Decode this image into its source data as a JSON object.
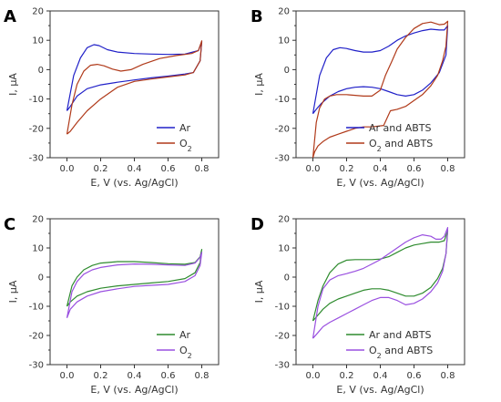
{
  "chart_data": [
    {
      "type": "line",
      "panel": "A",
      "xlabel": "E, V (vs. Ag/AgCl)",
      "ylabel": "I, µA",
      "xlim": [
        -0.1,
        0.9
      ],
      "ylim": [
        -30,
        20
      ],
      "xticks": [
        "0.0",
        "0.2",
        "0.4",
        "0.6",
        "0.8"
      ],
      "yticks": [
        "-30",
        "-20",
        "-10",
        "0",
        "10",
        "20"
      ],
      "legend": "bottom-right",
      "series": [
        {
          "name": "Ar",
          "color": "#2020c8",
          "x": [
            0,
            0.04,
            0.08,
            0.12,
            0.16,
            0.19,
            0.24,
            0.3,
            0.4,
            0.5,
            0.6,
            0.7,
            0.78,
            0.8,
            0.79,
            0.75,
            0.7,
            0.6,
            0.5,
            0.4,
            0.3,
            0.2,
            0.12,
            0.06,
            0.02,
            0
          ],
          "y": [
            -14,
            -2,
            4,
            7.5,
            8.5,
            8.2,
            6.8,
            6,
            5.5,
            5.3,
            5.2,
            5.3,
            6.5,
            9.5,
            3,
            -1,
            -1.5,
            -2.2,
            -2.8,
            -3.5,
            -4.3,
            -5.2,
            -6.5,
            -9,
            -12.5,
            -14
          ]
        },
        {
          "name": "O2",
          "color": "#b03a1a",
          "x": [
            0,
            0.03,
            0.06,
            0.1,
            0.14,
            0.18,
            0.22,
            0.27,
            0.32,
            0.38,
            0.45,
            0.55,
            0.65,
            0.74,
            0.78,
            0.8,
            0.79,
            0.75,
            0.7,
            0.6,
            0.5,
            0.4,
            0.3,
            0.2,
            0.12,
            0.06,
            0.02,
            0
          ],
          "y": [
            -22,
            -12,
            -5,
            -0.5,
            1.5,
            1.8,
            1.3,
            0.2,
            -0.5,
            0,
            1.8,
            3.8,
            4.8,
            5.5,
            6.5,
            9.8,
            3,
            -1,
            -1.8,
            -2.5,
            -3.2,
            -4,
            -6,
            -10,
            -14,
            -18,
            -21,
            -22
          ]
        }
      ]
    },
    {
      "type": "line",
      "panel": "B",
      "xlabel": "E, V (vs. Ag/AgCl)",
      "ylabel": "I, µA",
      "xlim": [
        -0.1,
        0.9
      ],
      "ylim": [
        -30,
        20
      ],
      "xticks": [
        "0.0",
        "0.2",
        "0.4",
        "0.6",
        "0.8"
      ],
      "yticks": [
        "-30",
        "-20",
        "-10",
        "0",
        "10",
        "20"
      ],
      "legend": "bottom-right",
      "series": [
        {
          "name": "Ar and ABTS",
          "color": "#2020c8",
          "x": [
            0,
            0.04,
            0.08,
            0.12,
            0.16,
            0.2,
            0.25,
            0.3,
            0.35,
            0.4,
            0.45,
            0.5,
            0.55,
            0.6,
            0.65,
            0.7,
            0.75,
            0.78,
            0.8,
            0.79,
            0.75,
            0.7,
            0.65,
            0.6,
            0.55,
            0.5,
            0.45,
            0.4,
            0.35,
            0.3,
            0.25,
            0.2,
            0.15,
            0.1,
            0.05,
            0.02,
            0
          ],
          "y": [
            -15,
            -2,
            4,
            6.8,
            7.5,
            7.2,
            6.5,
            6,
            6,
            6.5,
            8,
            10,
            11.5,
            12.5,
            13.3,
            13.8,
            13.5,
            13.5,
            15,
            5,
            -1,
            -4.5,
            -7,
            -8.5,
            -9,
            -8.5,
            -7.5,
            -6.5,
            -6,
            -5.8,
            -6,
            -6.5,
            -7.5,
            -9,
            -11.5,
            -13.5,
            -15
          ]
        },
        {
          "name": "O2 and ABTS",
          "color": "#b03a1a",
          "x": [
            0,
            0.02,
            0.04,
            0.07,
            0.1,
            0.14,
            0.2,
            0.3,
            0.35,
            0.4,
            0.43,
            0.47,
            0.5,
            0.55,
            0.6,
            0.65,
            0.7,
            0.75,
            0.78,
            0.8,
            0.79,
            0.77,
            0.74,
            0.7,
            0.65,
            0.6,
            0.55,
            0.5,
            0.46,
            0.42,
            0.35,
            0.3,
            0.25,
            0.2,
            0.15,
            0.1,
            0.06,
            0.03,
            0.01,
            0
          ],
          "y": [
            -30,
            -18,
            -13,
            -10,
            -9,
            -8.5,
            -8.5,
            -9,
            -9,
            -7,
            -2,
            3,
            7,
            11,
            14,
            15.7,
            16.2,
            15.3,
            15.5,
            16.5,
            8,
            3,
            -2,
            -5.5,
            -8.5,
            -10.5,
            -12.5,
            -13.5,
            -14,
            -19,
            -19.5,
            -19.5,
            -20,
            -21,
            -22,
            -23,
            -24.5,
            -26,
            -28,
            -30
          ]
        }
      ]
    },
    {
      "type": "line",
      "panel": "C",
      "xlabel": "E, V (vs. Ag/AgCl)",
      "ylabel": "I, µA",
      "xlim": [
        -0.1,
        0.9
      ],
      "ylim": [
        -30,
        20
      ],
      "xticks": [
        "0.0",
        "0.2",
        "0.4",
        "0.6",
        "0.8"
      ],
      "yticks": [
        "-30",
        "-20",
        "-10",
        "0",
        "10",
        "20"
      ],
      "legend": "bottom-right",
      "series": [
        {
          "name": "Ar",
          "color": "#2e8b2e",
          "x": [
            0,
            0.03,
            0.06,
            0.1,
            0.15,
            0.2,
            0.3,
            0.4,
            0.5,
            0.6,
            0.7,
            0.76,
            0.79,
            0.8,
            0.79,
            0.76,
            0.7,
            0.6,
            0.5,
            0.4,
            0.3,
            0.2,
            0.12,
            0.06,
            0.02,
            0
          ],
          "y": [
            -10,
            -3,
            0,
            2.5,
            4,
            4.8,
            5.3,
            5.3,
            5,
            4.6,
            4.4,
            5,
            7,
            9.5,
            5,
            1.5,
            -0.5,
            -1.5,
            -2,
            -2.5,
            -3,
            -3.8,
            -5,
            -6.5,
            -8.5,
            -10
          ]
        },
        {
          "name": "O2",
          "color": "#9a50e0",
          "x": [
            0,
            0.03,
            0.06,
            0.1,
            0.15,
            0.2,
            0.3,
            0.4,
            0.5,
            0.6,
            0.7,
            0.76,
            0.79,
            0.8,
            0.79,
            0.76,
            0.7,
            0.6,
            0.5,
            0.4,
            0.3,
            0.2,
            0.12,
            0.06,
            0.02,
            0
          ],
          "y": [
            -14,
            -5,
            -1.5,
            1,
            2.5,
            3.3,
            4.2,
            4.5,
            4.4,
            4.2,
            4,
            4.8,
            6.8,
            8.5,
            4,
            0.5,
            -1.5,
            -2.5,
            -2.8,
            -3.2,
            -4,
            -5,
            -6.5,
            -8.5,
            -11,
            -14
          ]
        }
      ]
    },
    {
      "type": "line",
      "panel": "D",
      "xlabel": "E, V (vs. Ag/AgCl)",
      "ylabel": "I, µA",
      "xlim": [
        -0.1,
        0.9
      ],
      "ylim": [
        -30,
        20
      ],
      "xticks": [
        "0.0",
        "0.2",
        "0.4",
        "0.6",
        "0.8"
      ],
      "yticks": [
        "-30",
        "-20",
        "-10",
        "0",
        "10",
        "20"
      ],
      "legend": "bottom-right",
      "series": [
        {
          "name": "Ar and ABTS",
          "color": "#2e8b2e",
          "x": [
            0,
            0.03,
            0.06,
            0.1,
            0.15,
            0.2,
            0.25,
            0.3,
            0.35,
            0.4,
            0.45,
            0.5,
            0.55,
            0.6,
            0.65,
            0.7,
            0.75,
            0.78,
            0.8,
            0.79,
            0.77,
            0.74,
            0.7,
            0.65,
            0.6,
            0.55,
            0.5,
            0.45,
            0.4,
            0.35,
            0.3,
            0.25,
            0.2,
            0.15,
            0.1,
            0.06,
            0.03,
            0
          ],
          "y": [
            -15,
            -8,
            -3,
            1.5,
            4.5,
            5.8,
            6,
            6,
            6,
            6.2,
            7,
            8.5,
            10,
            11,
            11.5,
            12,
            12,
            12.5,
            16,
            8,
            3,
            -0.5,
            -3.5,
            -5.5,
            -6.5,
            -6.5,
            -5.5,
            -4.5,
            -4,
            -4,
            -4.5,
            -5.5,
            -6.5,
            -7.5,
            -9,
            -11,
            -13,
            -15
          ]
        },
        {
          "name": "O2 and ABTS",
          "color": "#9a50e0",
          "x": [
            0,
            0.03,
            0.06,
            0.1,
            0.15,
            0.2,
            0.25,
            0.3,
            0.35,
            0.4,
            0.45,
            0.5,
            0.55,
            0.6,
            0.65,
            0.7,
            0.73,
            0.76,
            0.78,
            0.8,
            0.79,
            0.77,
            0.74,
            0.7,
            0.65,
            0.6,
            0.55,
            0.5,
            0.45,
            0.4,
            0.35,
            0.3,
            0.25,
            0.2,
            0.15,
            0.1,
            0.06,
            0.03,
            0
          ],
          "y": [
            -21,
            -10,
            -4,
            -1,
            0.5,
            1.2,
            2,
            3,
            4.5,
            6,
            8,
            10,
            12,
            13.5,
            14.5,
            14,
            13,
            13,
            14,
            17,
            8,
            2,
            -2,
            -5,
            -7.5,
            -9,
            -9.5,
            -8,
            -7,
            -7,
            -8,
            -9.5,
            -11,
            -12.5,
            -14,
            -15.5,
            -17,
            -19,
            -21
          ]
        }
      ]
    }
  ]
}
